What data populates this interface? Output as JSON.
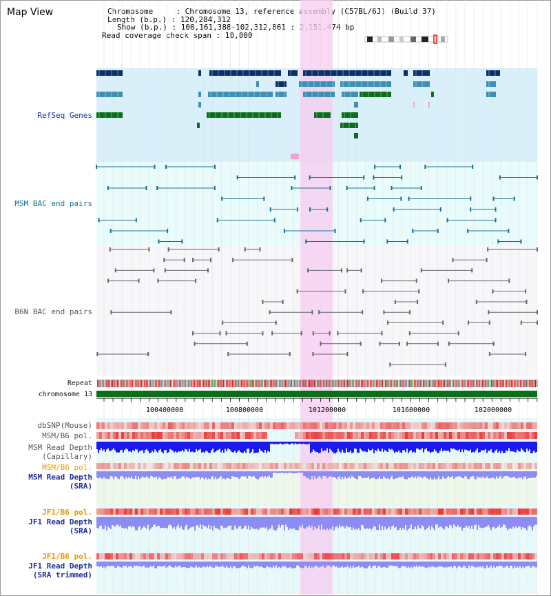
{
  "view_title": "Map View",
  "info": {
    "chromosome": "Chromosome     : Chromosome 13, reference assembly (C57BL/6J) (Build 37)",
    "length": "Length (b.p.) : 120,284,312",
    "show": "Show (b.p.) : 100,161,388-102,312,861 : 2,151,474 bp",
    "coverage": "Read coverage check span : 10,000"
  },
  "tracks": {
    "refseq_label": "RefSeq Genes",
    "msm_bac_label": "MSM BAC end pairs",
    "b6n_bac_label": "B6N BAC end pairs",
    "repeat_label": "Repeat",
    "chromosome_label": "chromosome 13",
    "dbsnp_label": "dbSNP(Mouse)",
    "msm_b6_pol_label": "MSM/B6 pol.",
    "msm_read_depth_cap_label1": "MSM Read Depth",
    "msm_read_depth_cap_label2": "(Capillary)",
    "msm_b6_pol2_label": "MSM/B6 pol.",
    "msm_read_depth_sra_label1": "MSM Read Depth",
    "msm_read_depth_sra_label2": "(SRA)",
    "jf1_b6_pol_label": "JF1/B6 pol.",
    "jf1_read_depth_label1": "JF1 Read Depth",
    "jf1_read_depth_label2": "(SRA)",
    "jf1_b6_pol2_label": "JF1/B6 pol.",
    "jf1_read_depth_trim_label1": "JF1 Read Depth",
    "jf1_read_depth_trim_label2": "(SRA trimmed)"
  },
  "axis": {
    "ticks": [
      "100400000",
      "100800000",
      "101200000",
      "101600000",
      "102000000"
    ]
  },
  "colors": {
    "refseq_bg": "#d9f0fb",
    "bac_bg": "#e9fbfb",
    "highlight": "#f7ccf0",
    "gene_dark": "#0b2f66",
    "gene_mid": "#3d8fb6",
    "gene_green": "#0b6e1b",
    "chromosome_bar": "#0b6e1b",
    "depth_blue": "#1a1aee",
    "depth_lavender": "#8c8cf2",
    "pol_red": "#e8403a"
  }
}
